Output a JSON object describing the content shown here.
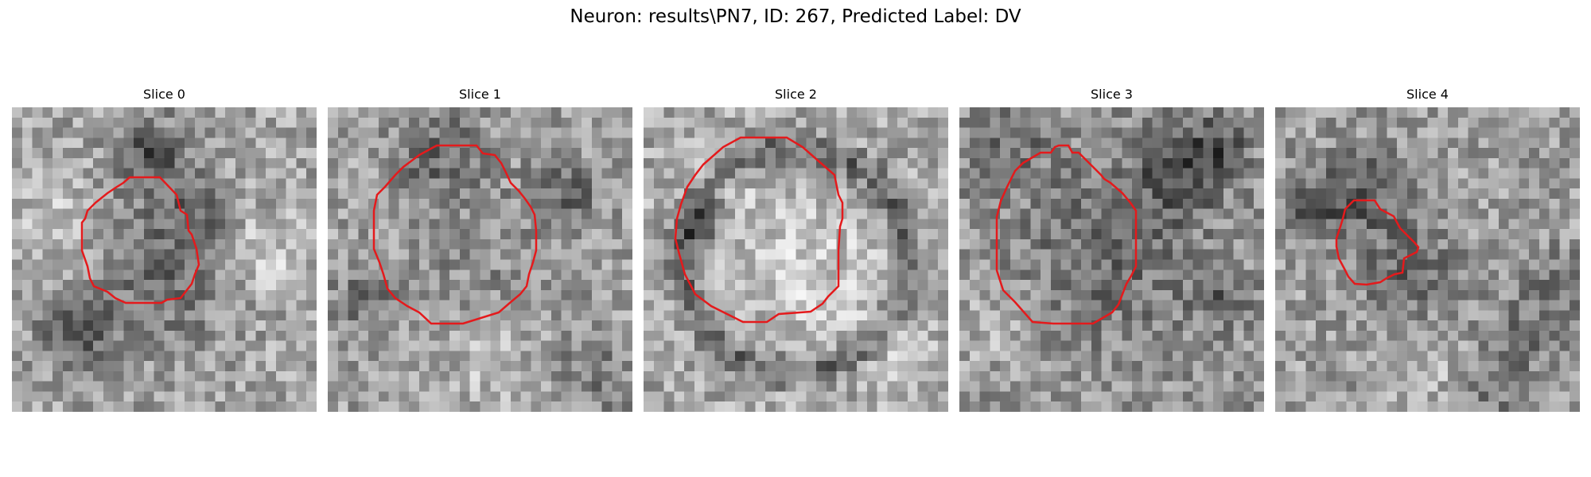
{
  "figure": {
    "title": "Neuron: results\\PN7, ID: 267, Predicted Label: DV"
  },
  "contour_color": "#e41a1c",
  "slices": [
    {
      "title": "Slice 0"
    },
    {
      "title": "Slice 1"
    },
    {
      "title": "Slice 2"
    },
    {
      "title": "Slice 3"
    },
    {
      "title": "Slice 4"
    }
  ]
}
